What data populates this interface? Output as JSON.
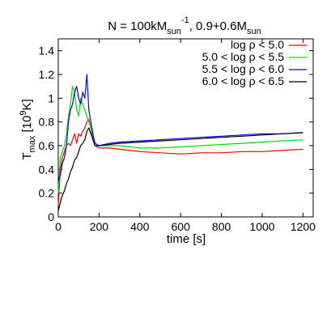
{
  "chart_data": {
    "type": "line",
    "title": {
      "prefix": "N = 100kM",
      "sub1": "sun",
      "sup1": "-1",
      "mid": ", 0.9+0.6M",
      "sub2": "sun"
    },
    "xlabel": "time [s]",
    "ylabel": {
      "prefix": "T",
      "sub": "max",
      "mid": " [10",
      "sup": "9",
      "suffix": "K]"
    },
    "xlim": [
      0,
      1250
    ],
    "ylim": [
      0,
      1.5
    ],
    "xticks": [
      0,
      200,
      400,
      600,
      800,
      1000,
      1200
    ],
    "yticks": [
      0,
      0.2,
      0.4,
      0.6,
      0.8,
      1,
      1.2,
      1.4
    ],
    "xtick_labels": [
      "0",
      "200",
      "400",
      "600",
      "800",
      "1000",
      "1200"
    ],
    "ytick_labels": [
      "0",
      "0.2",
      "0.4",
      "0.6",
      "0.8",
      "1",
      "1.2",
      "1.4"
    ],
    "grid": false,
    "legend_position": "top-right",
    "series": [
      {
        "name": "log ρ < 5.0",
        "color": "#ff0000",
        "x": [
          0,
          10,
          20,
          30,
          40,
          50,
          60,
          70,
          80,
          90,
          100,
          110,
          120,
          130,
          140,
          150,
          160,
          170,
          180,
          200,
          250,
          300,
          400,
          500,
          600,
          700,
          800,
          900,
          1000,
          1100,
          1200
        ],
        "y": [
          0.1,
          0.4,
          0.5,
          0.55,
          0.6,
          0.62,
          0.6,
          0.65,
          0.7,
          0.62,
          0.7,
          0.68,
          0.72,
          0.75,
          0.8,
          0.82,
          0.75,
          0.65,
          0.6,
          0.58,
          0.58,
          0.57,
          0.55,
          0.54,
          0.53,
          0.54,
          0.54,
          0.55,
          0.55,
          0.56,
          0.57
        ]
      },
      {
        "name": "5.0 < log ρ < 5.5",
        "color": "#00e000",
        "x": [
          0,
          10,
          20,
          30,
          40,
          50,
          60,
          70,
          80,
          90,
          100,
          110,
          120,
          130,
          140,
          150,
          160,
          170,
          180,
          200,
          250,
          300,
          400,
          500,
          600,
          700,
          800,
          900,
          1000,
          1100,
          1200
        ],
        "y": [
          0.2,
          0.5,
          0.55,
          0.6,
          0.7,
          0.85,
          0.95,
          1.1,
          1.05,
          0.9,
          0.85,
          1.0,
          0.95,
          0.9,
          0.85,
          0.8,
          0.75,
          0.68,
          0.62,
          0.6,
          0.6,
          0.6,
          0.58,
          0.58,
          0.59,
          0.6,
          0.61,
          0.62,
          0.63,
          0.64,
          0.65
        ]
      },
      {
        "name": "5.5 < log ρ < 6.0",
        "color": "#0000ff",
        "x": [
          0,
          10,
          20,
          30,
          40,
          50,
          60,
          70,
          80,
          90,
          100,
          110,
          120,
          130,
          140,
          150,
          160,
          170,
          180,
          200,
          250,
          300,
          400,
          500,
          600,
          700,
          800,
          900,
          1000,
          1100,
          1200
        ],
        "y": [
          0.3,
          0.35,
          0.45,
          0.5,
          0.6,
          0.8,
          0.9,
          0.95,
          1.05,
          1.1,
          1.0,
          0.95,
          1.05,
          1.0,
          1.2,
          0.9,
          0.8,
          0.7,
          0.62,
          0.6,
          0.62,
          0.63,
          0.64,
          0.65,
          0.66,
          0.67,
          0.68,
          0.69,
          0.7,
          0.7,
          0.71
        ]
      },
      {
        "name": "6.0 < log ρ < 6.5",
        "color": "#000000",
        "x": [
          0,
          10,
          20,
          30,
          40,
          50,
          60,
          70,
          80,
          90,
          100,
          110,
          120,
          130,
          140,
          150,
          160,
          170,
          180,
          200,
          250,
          300,
          400,
          500,
          600,
          700,
          800,
          900,
          1000,
          1100,
          1200
        ],
        "y": [
          0.05,
          0.12,
          0.18,
          0.22,
          0.28,
          0.32,
          0.38,
          0.42,
          0.48,
          0.5,
          0.55,
          0.6,
          0.62,
          0.65,
          0.72,
          0.75,
          0.7,
          0.65,
          0.6,
          0.6,
          0.61,
          0.62,
          0.63,
          0.64,
          0.65,
          0.66,
          0.67,
          0.68,
          0.69,
          0.7,
          0.71
        ]
      }
    ]
  }
}
